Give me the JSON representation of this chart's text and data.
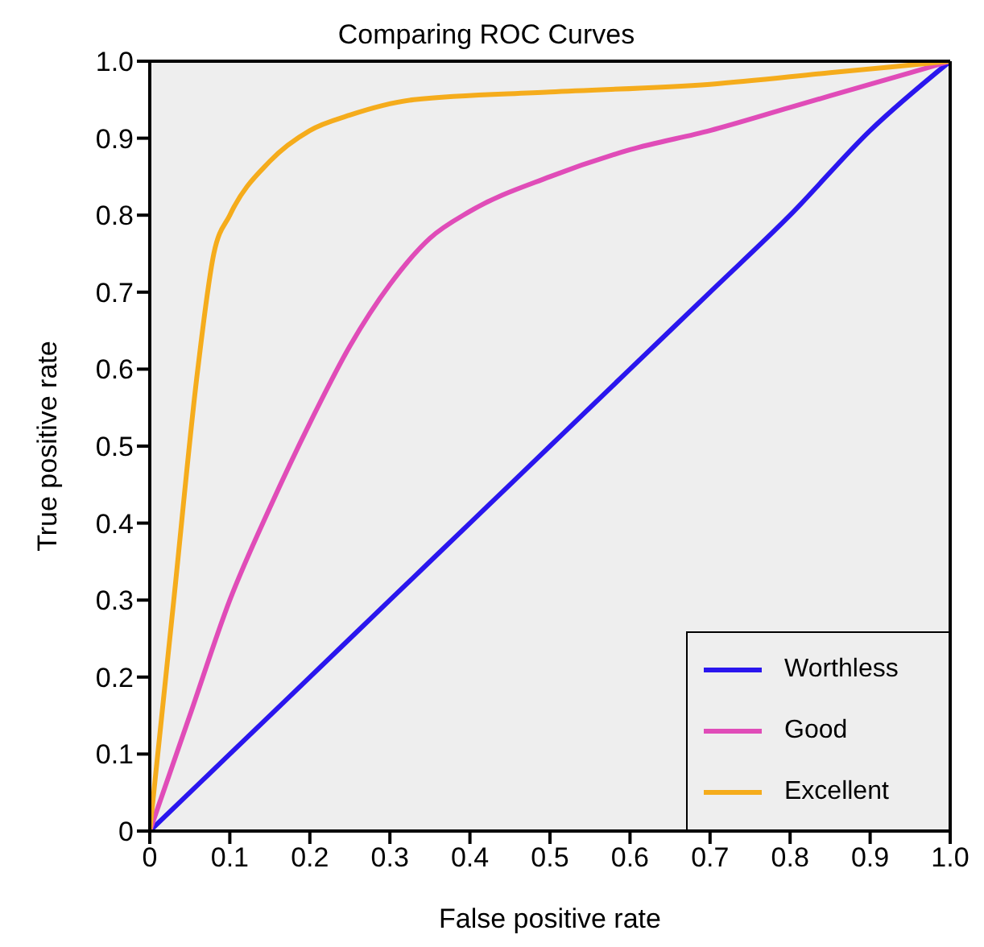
{
  "chart_data": {
    "type": "line",
    "title": "Comparing ROC Curves",
    "xlabel": "False positive rate",
    "ylabel": "True positive rate",
    "xlim": [
      0,
      1
    ],
    "ylim": [
      0,
      1
    ],
    "xticks": [
      0,
      0.1,
      0.2,
      0.3,
      0.4,
      0.5,
      0.6,
      0.7,
      0.8,
      0.9,
      {
        "value": 1,
        "label": "1.0"
      }
    ],
    "yticks": [
      0,
      0.1,
      0.2,
      0.3,
      0.4,
      0.5,
      0.6,
      0.7,
      0.8,
      0.9,
      {
        "value": 1,
        "label": "1.0"
      }
    ],
    "legend": "bottom right",
    "marker": "none",
    "line_style": "solid",
    "series": [
      {
        "name": "Worthless",
        "color": "#2a16ee",
        "x": [
          0,
          0.1,
          0.2,
          0.3,
          0.4,
          0.45,
          0.5,
          0.6,
          0.7,
          0.8,
          0.9,
          1
        ],
        "values": [
          0,
          0.1,
          0.2,
          0.3,
          0.4,
          0.45,
          0.5,
          0.6,
          0.7,
          0.8,
          0.91,
          1
        ]
      },
      {
        "name": "Good",
        "color": "#e04cb8",
        "x": [
          0,
          0.05,
          0.1,
          0.15,
          0.2,
          0.25,
          0.3,
          0.35,
          0.4,
          0.5,
          0.6,
          0.7,
          0.8,
          0.9,
          1
        ],
        "values": [
          0,
          0.15,
          0.3,
          0.42,
          0.53,
          0.63,
          0.71,
          0.77,
          0.805,
          0.85,
          0.885,
          0.91,
          0.94,
          0.97,
          1
        ]
      },
      {
        "name": "Excellent",
        "color": "#f5ac1c",
        "x": [
          0,
          0.03,
          0.06,
          0.08,
          0.1,
          0.15,
          0.2,
          0.25,
          0.33,
          0.5,
          0.7,
          0.85,
          1
        ],
        "values": [
          0,
          0.3,
          0.6,
          0.75,
          0.8,
          0.87,
          0.91,
          0.93,
          0.95,
          0.96,
          0.97,
          0.985,
          1
        ]
      }
    ]
  }
}
